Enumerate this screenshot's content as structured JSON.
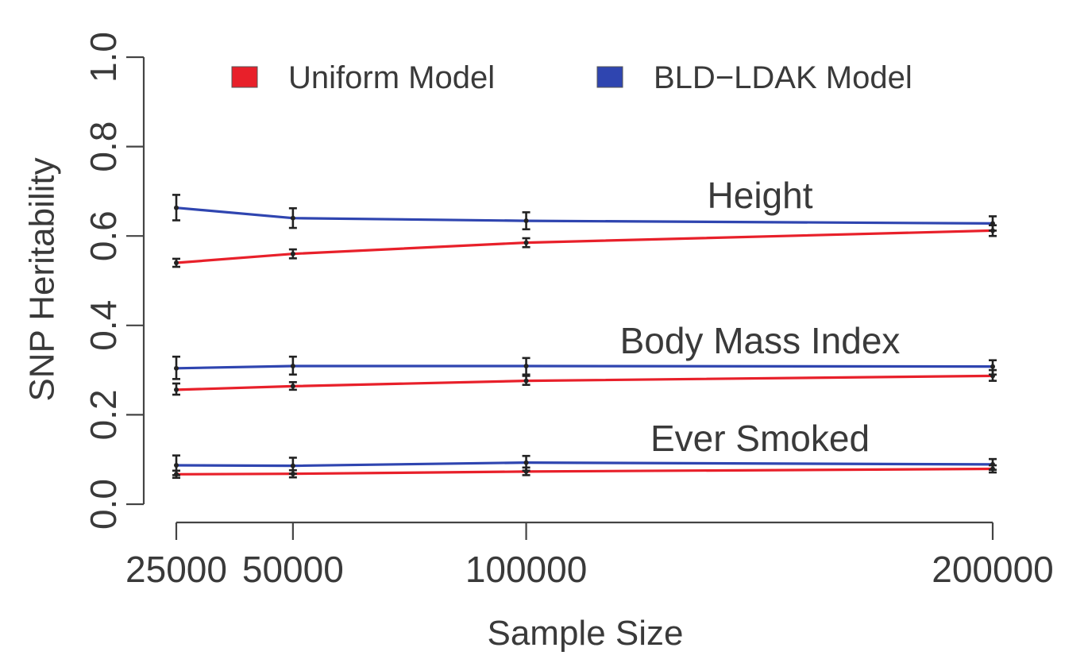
{
  "chart_data": {
    "type": "line",
    "xlabel": "Sample Size",
    "ylabel": "SNP Heritability",
    "x": [
      25000,
      50000,
      100000,
      200000
    ],
    "x_tick_labels": [
      "25000",
      "50000",
      "100000",
      "200000"
    ],
    "ylim": [
      0.0,
      1.0
    ],
    "y_ticks": [
      0.0,
      0.2,
      0.4,
      0.6,
      0.8,
      1.0
    ],
    "y_tick_labels": [
      "0.0",
      "0.2",
      "0.4",
      "0.6",
      "0.8",
      "1.0"
    ],
    "grid": false,
    "legend": {
      "placement": "top",
      "entries": [
        {
          "label": "Uniform Model",
          "color": "#e8202a"
        },
        {
          "label": "BLD−LDAK Model",
          "color": "#2f45b0"
        }
      ]
    },
    "groups": [
      {
        "label": "Height",
        "series": [
          {
            "model": "Uniform Model",
            "color": "#e8202a",
            "values": [
              0.54,
              0.56,
              0.585,
              0.612
            ],
            "err_low": [
              0.531,
              0.55,
              0.575,
              0.6
            ],
            "err_high": [
              0.549,
              0.57,
              0.595,
              0.624
            ]
          },
          {
            "model": "BLD−LDAK Model",
            "color": "#2f45b0",
            "values": [
              0.663,
              0.64,
              0.634,
              0.628
            ],
            "err_low": [
              0.635,
              0.618,
              0.615,
              0.612
            ],
            "err_high": [
              0.692,
              0.662,
              0.653,
              0.644
            ]
          }
        ]
      },
      {
        "label": "Body Mass Index",
        "series": [
          {
            "model": "Uniform Model",
            "color": "#e8202a",
            "values": [
              0.256,
              0.264,
              0.276,
              0.287
            ],
            "err_low": [
              0.245,
              0.256,
              0.267,
              0.276
            ],
            "err_high": [
              0.27,
              0.273,
              0.287,
              0.3
            ]
          },
          {
            "model": "BLD−LDAK Model",
            "color": "#2f45b0",
            "values": [
              0.304,
              0.309,
              0.309,
              0.308
            ],
            "err_low": [
              0.28,
              0.29,
              0.29,
              0.29
            ],
            "err_high": [
              0.33,
              0.33,
              0.327,
              0.322
            ]
          }
        ]
      },
      {
        "label": "Ever Smoked",
        "series": [
          {
            "model": "Uniform Model",
            "color": "#e8202a",
            "values": [
              0.067,
              0.068,
              0.073,
              0.079
            ],
            "err_low": [
              0.059,
              0.06,
              0.065,
              0.071
            ],
            "err_high": [
              0.075,
              0.076,
              0.082,
              0.087
            ]
          },
          {
            "model": "BLD−LDAK Model",
            "color": "#2f45b0",
            "values": [
              0.087,
              0.086,
              0.093,
              0.089
            ],
            "err_low": [
              0.065,
              0.068,
              0.075,
              0.077
            ],
            "err_high": [
              0.109,
              0.104,
              0.108,
              0.101
            ]
          }
        ]
      }
    ]
  }
}
